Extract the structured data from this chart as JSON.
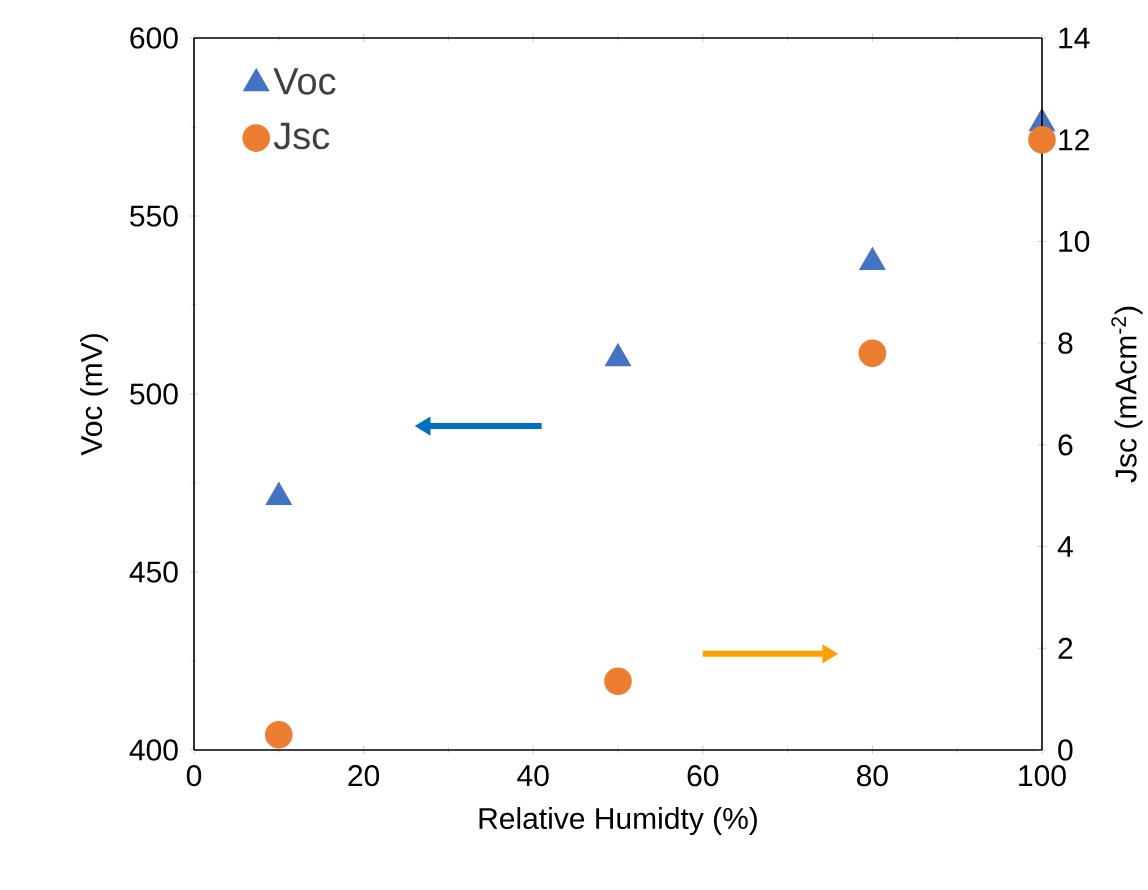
{
  "chart_data": {
    "type": "scatter",
    "xlabel": "Relative Humidty (%)",
    "ylabel": "Voc (mV)",
    "y2label": "Jsc (mAcm$^{-2}$)",
    "x": [
      10,
      50,
      80,
      100
    ],
    "series": [
      {
        "name": "Voc",
        "color": "#4472c4",
        "marker": "triangle",
        "values": [
          471,
          510,
          537,
          576
        ]
      },
      {
        "name": "Jsc",
        "color": "#ed7d31",
        "marker": "circle",
        "axis": "y2",
        "values": [
          0.3,
          1.35,
          7.8,
          12.0
        ]
      }
    ],
    "xlim": [
      0,
      100
    ],
    "xticks": [
      0,
      20,
      40,
      60,
      80,
      100
    ],
    "ylim": [
      400,
      600
    ],
    "yticks": [
      400,
      450,
      500,
      550,
      600
    ],
    "y2lim": [
      0,
      14
    ],
    "y2ticks": [
      0,
      2,
      4,
      6,
      8,
      10,
      12,
      14
    ],
    "legend": "top left"
  }
}
